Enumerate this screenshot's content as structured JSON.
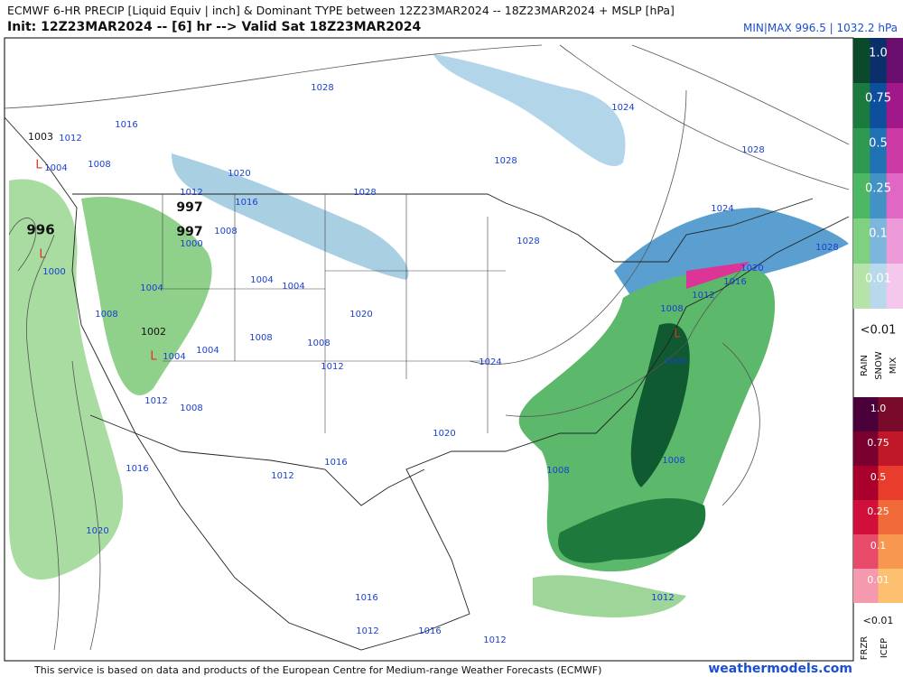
{
  "header": {
    "title": "ECMWF 6-HR PRECIP [Liquid Equiv | inch] & Dominant TYPE between 12Z23MAR2024 -- 18Z23MAR2024 + MSLP [hPa]",
    "init": "Init: 12Z23MAR2024 -- [6] hr --> Valid Sat 18Z23MAR2024",
    "minmax": "MIN|MAX 996.5 | 1032.2 hPa"
  },
  "legend": {
    "rain_snow_levels": [
      "1.0",
      "0.75",
      "0.5",
      "0.25",
      "0.1",
      "0.01"
    ],
    "rain_snow_min": "<0.01",
    "rain_snow_types": [
      "RAIN",
      "SNOW",
      "MIX"
    ],
    "ice_levels": [
      "1.0",
      "0.75",
      "0.5",
      "0.25",
      "0.1",
      "0.01"
    ],
    "ice_min": "<0.01",
    "ice_types": [
      "FRZR",
      "ICEP"
    ]
  },
  "map": {
    "pressure_values": [
      "996",
      "997",
      "997",
      "1002",
      "1003"
    ],
    "isobar_labels": [
      "1028",
      "1016",
      "1012",
      "1004",
      "1008",
      "1020",
      "1012",
      "1016",
      "1028",
      "1008",
      "1000",
      "1000",
      "1004",
      "1004",
      "1004",
      "1008",
      "1020",
      "1008",
      "1008",
      "1004",
      "1004",
      "1012",
      "1024",
      "1012",
      "1008",
      "1028",
      "1024",
      "1028",
      "1024",
      "1028",
      "1028",
      "1020",
      "1016",
      "1012",
      "1008",
      "1004",
      "1020",
      "1016",
      "1012",
      "1016",
      "1008",
      "1008",
      "1020",
      "1016",
      "1012",
      "1012",
      "1016",
      "1012"
    ],
    "low_markers": [
      "L",
      "L",
      "L",
      "L"
    ]
  },
  "footer": {
    "credit": "This service is based on data and products of the European Centre for Medium-range Weather Forecasts (ECMWF)",
    "site": "weathermodels.com"
  }
}
